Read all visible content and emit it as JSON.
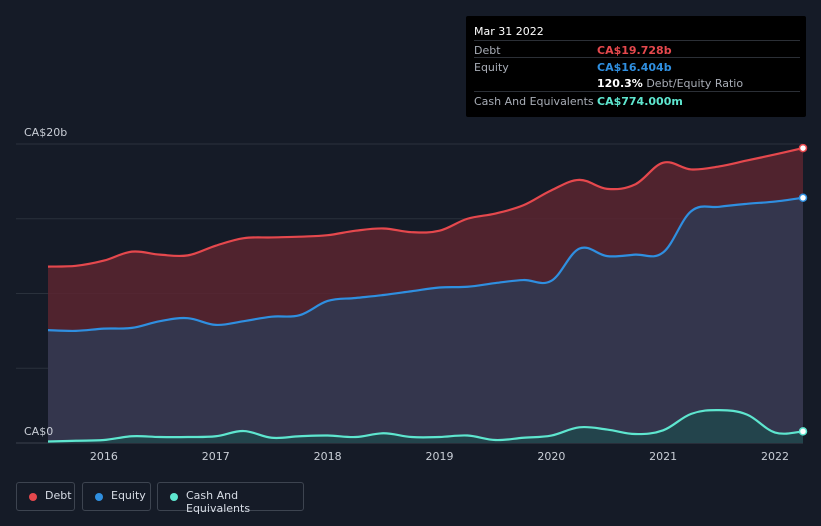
{
  "tooltip": {
    "date": "Mar 31 2022",
    "debt_label": "Debt",
    "debt_value": "CA$19.728b",
    "equity_label": "Equity",
    "equity_value": "CA$16.404b",
    "ratio_value": "120.3%",
    "ratio_label": "Debt/Equity Ratio",
    "cash_label": "Cash And Equivalents",
    "cash_value": "CA$774.000m"
  },
  "legend": [
    {
      "label": "Debt",
      "color": "#e5484d"
    },
    {
      "label": "Equity",
      "color": "#2f8fe0"
    },
    {
      "label": "Cash And Equivalents",
      "color": "#5ee6cf"
    }
  ],
  "chart_data": {
    "type": "area",
    "y_unit": "CA$ billions",
    "ylim": [
      0,
      20
    ],
    "y_ticks": [
      {
        "value": 20,
        "label": "CA$20b"
      },
      {
        "value": 0,
        "label": "CA$0"
      }
    ],
    "xlim": [
      2015.5,
      2022.25
    ],
    "x_ticks": [
      {
        "value": 2016,
        "label": "2016"
      },
      {
        "value": 2017,
        "label": "2017"
      },
      {
        "value": 2018,
        "label": "2018"
      },
      {
        "value": 2019,
        "label": "2019"
      },
      {
        "value": 2020,
        "label": "2020"
      },
      {
        "value": 2021,
        "label": "2021"
      },
      {
        "value": 2022,
        "label": "2022"
      }
    ],
    "grid": true,
    "legend_position": "bottom-left",
    "series": [
      {
        "name": "Debt",
        "color": "#e5484d",
        "x": [
          2015.5,
          2015.75,
          2016.0,
          2016.25,
          2016.5,
          2016.75,
          2017.0,
          2017.25,
          2017.5,
          2017.75,
          2018.0,
          2018.25,
          2018.5,
          2018.75,
          2019.0,
          2019.25,
          2019.5,
          2019.75,
          2020.0,
          2020.25,
          2020.5,
          2020.75,
          2021.0,
          2021.25,
          2021.5,
          2021.75,
          2022.0,
          2022.25
        ],
        "values": [
          11.8,
          11.85,
          12.2,
          12.8,
          12.6,
          12.55,
          13.2,
          13.7,
          13.75,
          13.8,
          13.9,
          14.2,
          14.35,
          14.1,
          14.2,
          15.0,
          15.35,
          15.9,
          16.9,
          17.6,
          17.0,
          17.3,
          18.75,
          18.3,
          18.5,
          18.9,
          19.3,
          19.728
        ]
      },
      {
        "name": "Equity",
        "color": "#2f8fe0",
        "x": [
          2015.5,
          2015.75,
          2016.0,
          2016.25,
          2016.5,
          2016.75,
          2017.0,
          2017.25,
          2017.5,
          2017.75,
          2018.0,
          2018.25,
          2018.5,
          2018.75,
          2019.0,
          2019.25,
          2019.5,
          2019.75,
          2020.0,
          2020.25,
          2020.5,
          2020.75,
          2021.0,
          2021.25,
          2021.5,
          2021.75,
          2022.0,
          2022.25
        ],
        "values": [
          7.55,
          7.5,
          7.65,
          7.7,
          8.15,
          8.35,
          7.9,
          8.15,
          8.45,
          8.55,
          9.5,
          9.7,
          9.9,
          10.15,
          10.4,
          10.45,
          10.7,
          10.9,
          10.85,
          13.0,
          12.5,
          12.6,
          12.75,
          15.5,
          15.8,
          16.0,
          16.15,
          16.404
        ]
      },
      {
        "name": "Cash And Equivalents",
        "color": "#5ee6cf",
        "x": [
          2015.5,
          2015.75,
          2016.0,
          2016.25,
          2016.5,
          2016.75,
          2017.0,
          2017.25,
          2017.5,
          2017.75,
          2018.0,
          2018.25,
          2018.5,
          2018.75,
          2019.0,
          2019.25,
          2019.5,
          2019.75,
          2020.0,
          2020.25,
          2020.5,
          2020.75,
          2021.0,
          2021.25,
          2021.5,
          2021.75,
          2022.0,
          2022.25
        ],
        "values": [
          0.1,
          0.15,
          0.2,
          0.45,
          0.4,
          0.4,
          0.45,
          0.8,
          0.35,
          0.45,
          0.5,
          0.4,
          0.65,
          0.4,
          0.4,
          0.5,
          0.2,
          0.35,
          0.5,
          1.05,
          0.9,
          0.6,
          0.85,
          1.95,
          2.2,
          1.9,
          0.7,
          0.774
        ]
      }
    ]
  }
}
